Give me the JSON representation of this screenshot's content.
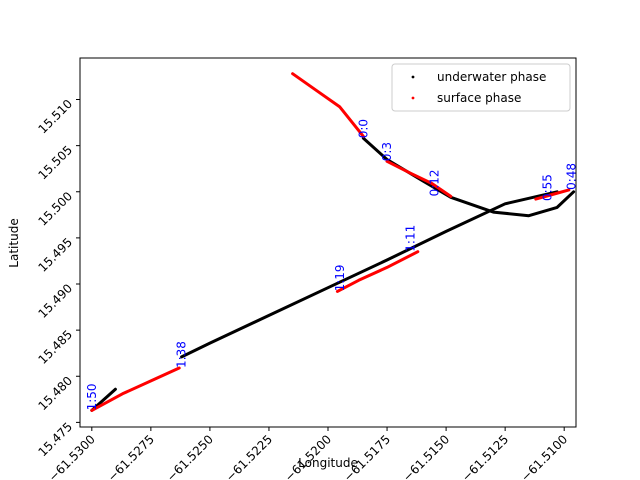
{
  "chart_data": {
    "type": "scatter",
    "title": "",
    "xlabel": "Longitude",
    "ylabel": "Latitude",
    "xlim": [
      -61.5305,
      -61.5095
    ],
    "ylim": [
      15.4745,
      15.5145
    ],
    "xticks": [
      -61.53,
      -61.5275,
      -61.525,
      -61.5225,
      -61.52,
      -61.5175,
      -61.515,
      -61.5125,
      -61.51
    ],
    "xtick_labels": [
      "−61.5300",
      "−61.5275",
      "−61.5250",
      "−61.5225",
      "−61.5200",
      "−61.5175",
      "−61.5150",
      "−61.5125",
      "−61.5100"
    ],
    "yticks": [
      15.475,
      15.48,
      15.485,
      15.49,
      15.495,
      15.5,
      15.505,
      15.51
    ],
    "ytick_labels": [
      "15.475",
      "15.480",
      "15.485",
      "15.490",
      "15.495",
      "15.500",
      "15.505",
      "15.510"
    ],
    "grid": false,
    "legend": {
      "position": "top-right",
      "entries": [
        "underwater phase",
        "surface phase"
      ]
    },
    "series": [
      {
        "name": "underwater phase",
        "color": "#000000",
        "segments": [
          [
            [
              -61.5185,
              15.5058
            ],
            [
              -61.5175,
              15.5035
            ],
            [
              -61.516,
              15.5012
            ],
            [
              -61.5148,
              15.4994
            ],
            [
              -61.513,
              15.4978
            ],
            [
              -61.5115,
              15.4974
            ],
            [
              -61.5103,
              15.4983
            ],
            [
              -61.5096,
              15.5
            ]
          ],
          [
            [
              -61.5103,
              15.5
            ],
            [
              -61.5125,
              15.4987
            ],
            [
              -61.515,
              15.4957
            ],
            [
              -61.5175,
              15.4926
            ],
            [
              -61.52,
              15.4896
            ],
            [
              -61.5225,
              15.4866
            ],
            [
              -61.525,
              15.4836
            ],
            [
              -61.5262,
              15.4821
            ]
          ],
          [
            [
              -61.529,
              15.4786
            ],
            [
              -61.53,
              15.4763
            ]
          ]
        ]
      },
      {
        "name": "surface phase",
        "color": "#ff0000",
        "segments": [
          [
            [
              -61.5215,
              15.5128
            ],
            [
              -61.5205,
              15.511
            ],
            [
              -61.5195,
              15.5092
            ],
            [
              -61.5185,
              15.506
            ]
          ],
          [
            [
              -61.5175,
              15.5033
            ],
            [
              -61.5165,
              15.502
            ],
            [
              -61.5156,
              15.5009
            ],
            [
              -61.5148,
              15.4995
            ]
          ],
          [
            [
              -61.5112,
              15.4992
            ],
            [
              -61.5105,
              15.4997
            ],
            [
              -61.5098,
              15.5002
            ]
          ],
          [
            [
              -61.5196,
              15.4892
            ],
            [
              -61.5187,
              15.4904
            ],
            [
              -61.5175,
              15.4918
            ],
            [
              -61.5162,
              15.4935
            ]
          ],
          [
            [
              -61.5263,
              15.4809
            ],
            [
              -61.5275,
              15.4795
            ],
            [
              -61.5287,
              15.4781
            ],
            [
              -61.53,
              15.4763
            ]
          ]
        ]
      }
    ],
    "annotations": [
      {
        "text": "0:0",
        "x": -61.5185,
        "y": 15.5058
      },
      {
        "text": "0:3",
        "x": -61.5175,
        "y": 15.5033
      },
      {
        "text": "0:12",
        "x": -61.5155,
        "y": 15.4995
      },
      {
        "text": "0:55",
        "x": -61.5107,
        "y": 15.499
      },
      {
        "text": "0:48",
        "x": -61.5097,
        "y": 15.5002
      },
      {
        "text": "1:11",
        "x": -61.5165,
        "y": 15.4935
      },
      {
        "text": "1:19",
        "x": -61.5195,
        "y": 15.4892
      },
      {
        "text": "1:38",
        "x": -61.5262,
        "y": 15.4809
      },
      {
        "text": "1:50",
        "x": -61.53,
        "y": 15.4763
      }
    ]
  }
}
